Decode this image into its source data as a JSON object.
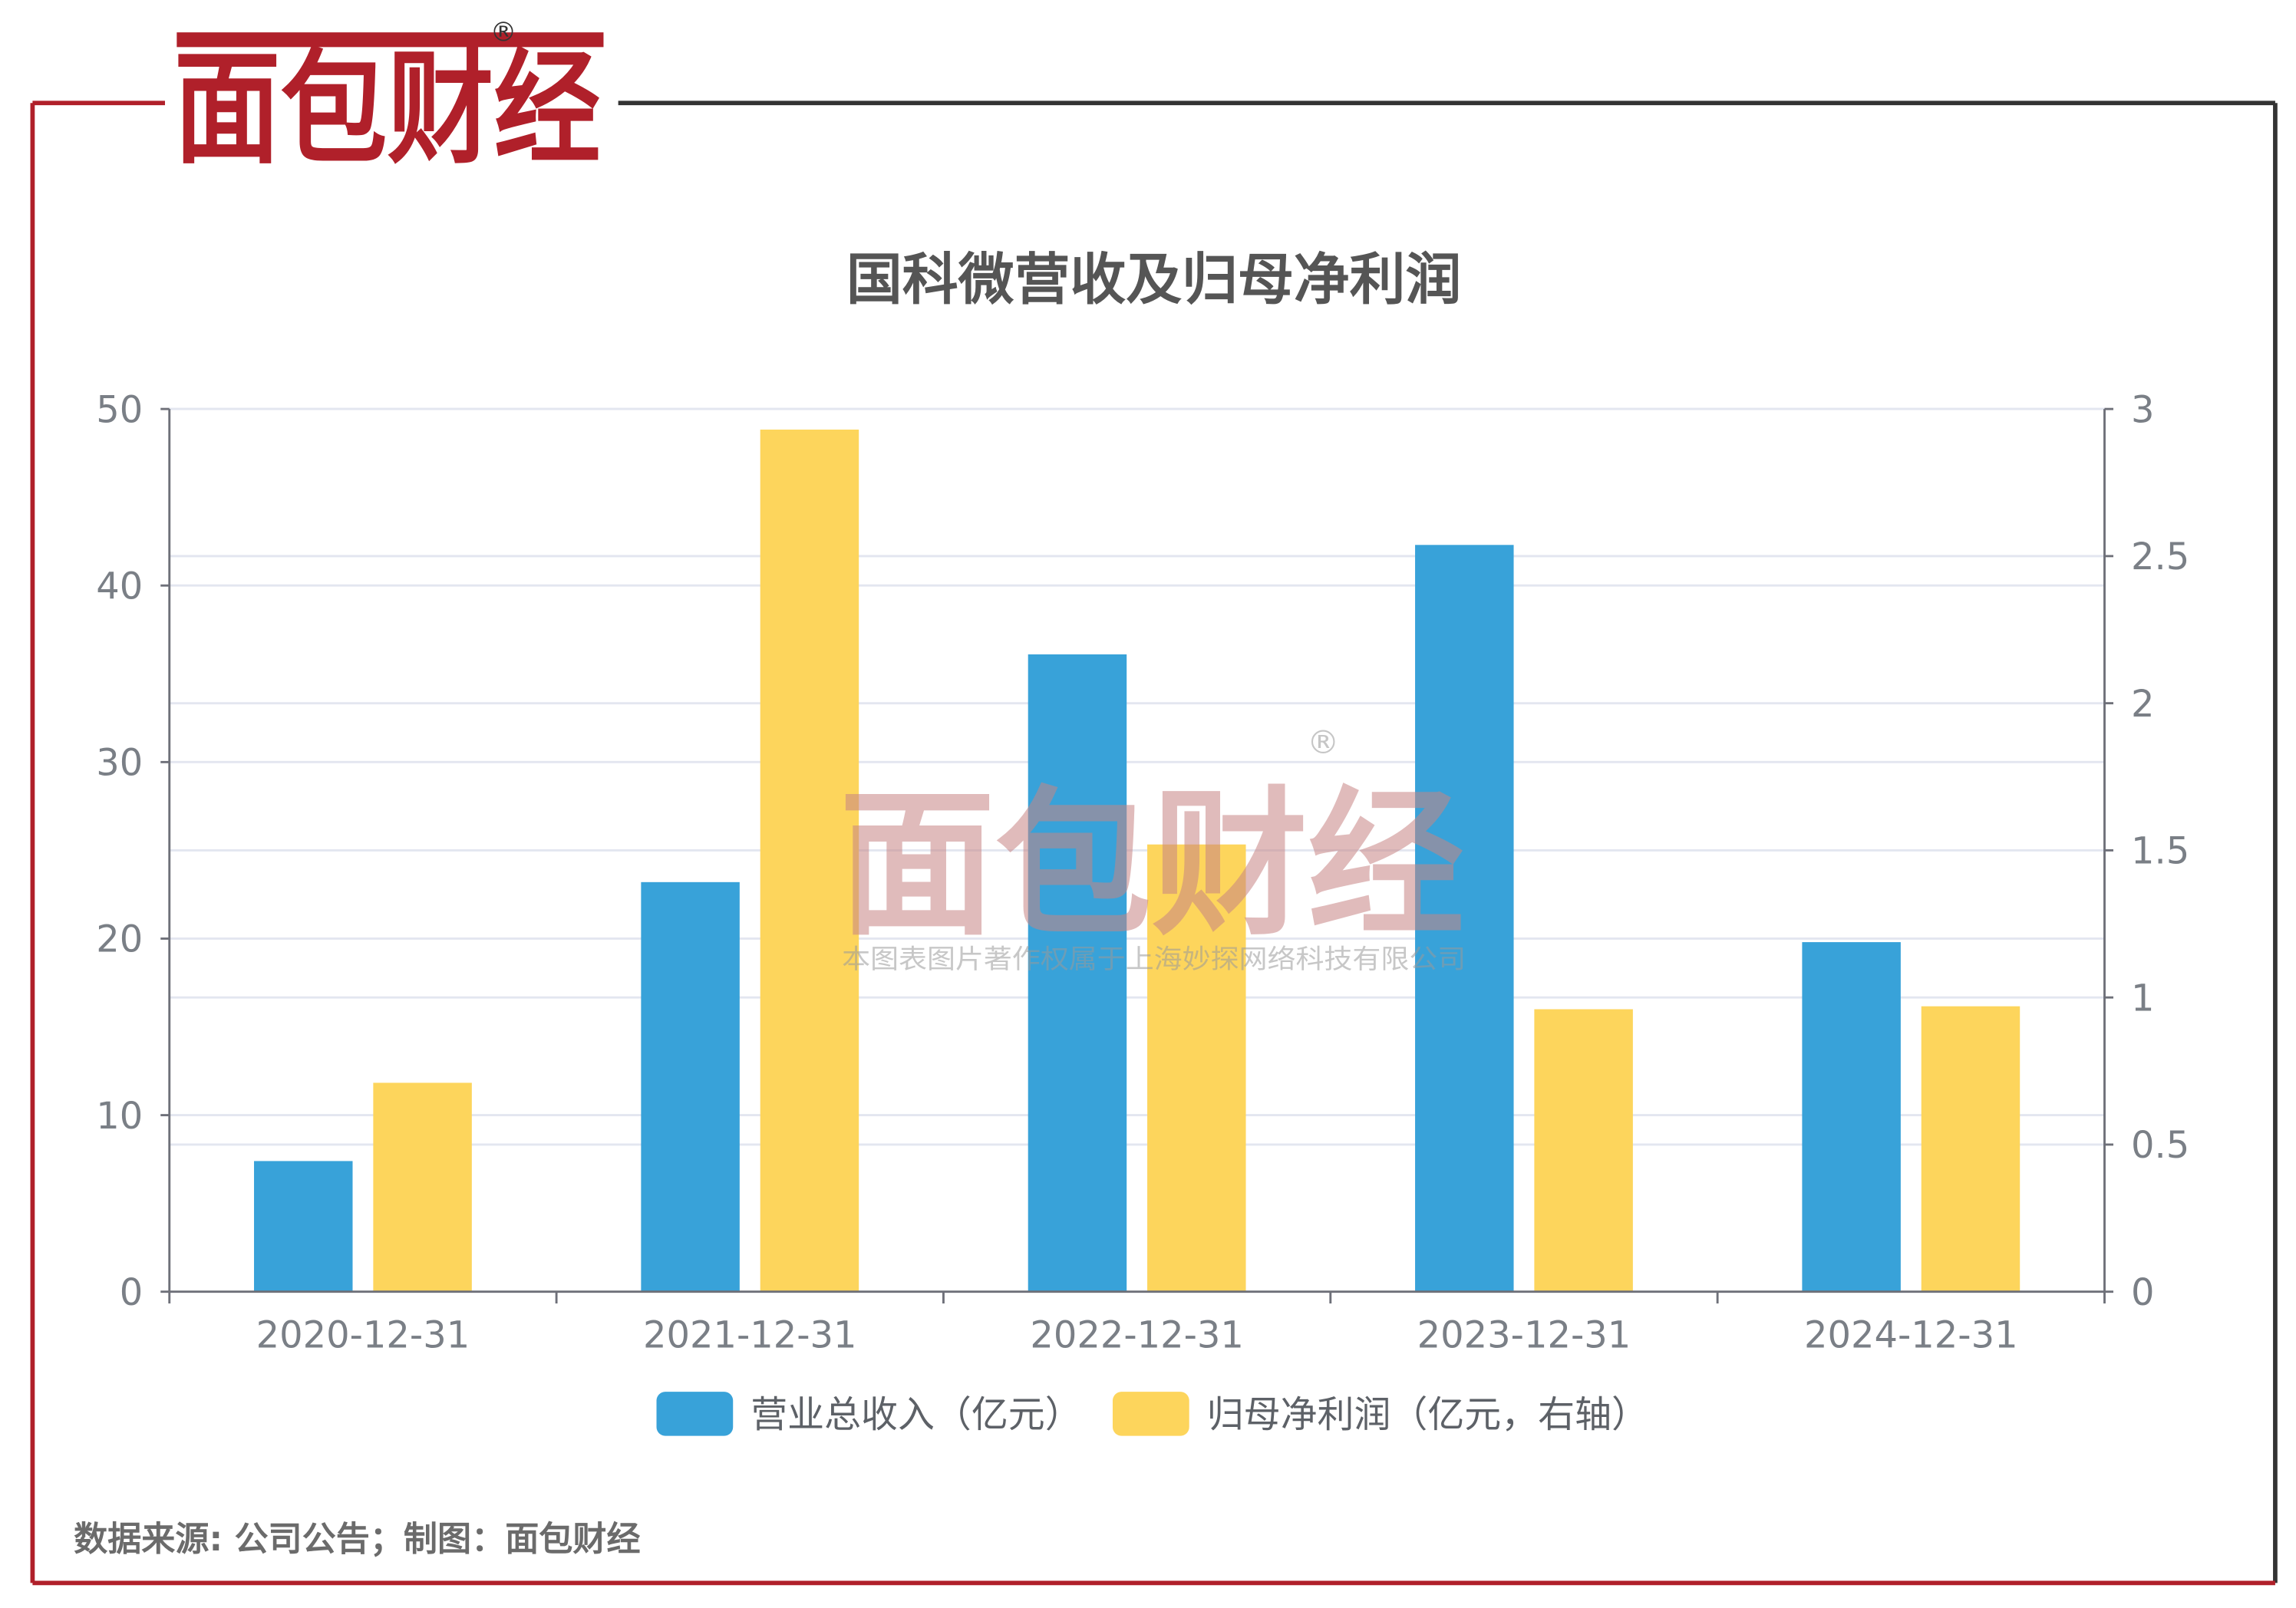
{
  "brand": {
    "logo": "面包财经",
    "registered_mark": "®"
  },
  "colors": {
    "frame_red": "#b0202a",
    "frame_dark": "#333333",
    "revenue_bar": "#38a2d9",
    "profit_bar": "#fdd55c",
    "grid": "#e3e6f0",
    "axis": "#6e7079"
  },
  "watermark": {
    "logo": "面包财经",
    "copyright": "本图表图片著作权属于上海妙探网络科技有限公司"
  },
  "footer": {
    "source": "数据来源: 公司公告；制图：面包财经"
  },
  "chart_data": {
    "type": "bar",
    "title": "国科微营收及归母净利润",
    "categories": [
      "2020-12-31",
      "2021-12-31",
      "2022-12-31",
      "2023-12-31",
      "2024-12-31"
    ],
    "series": [
      {
        "name": "营业总收入（亿元）",
        "axis": "left",
        "color": "#38a2d9",
        "values": [
          7.4,
          23.2,
          36.1,
          42.3,
          19.8
        ]
      },
      {
        "name": "归母净利润（亿元，右轴）",
        "axis": "right",
        "color": "#fdd55c",
        "values": [
          0.71,
          2.93,
          1.52,
          0.96,
          0.97
        ]
      }
    ],
    "y_left": {
      "min": 0,
      "max": 50,
      "ticks": [
        "0",
        "10",
        "20",
        "30",
        "40",
        "50"
      ]
    },
    "y_right": {
      "min": 0,
      "max": 3,
      "ticks": [
        "0",
        "0.5",
        "1",
        "1.5",
        "2",
        "2.5",
        "3"
      ]
    },
    "grid": true,
    "legend_position": "bottom-center"
  }
}
